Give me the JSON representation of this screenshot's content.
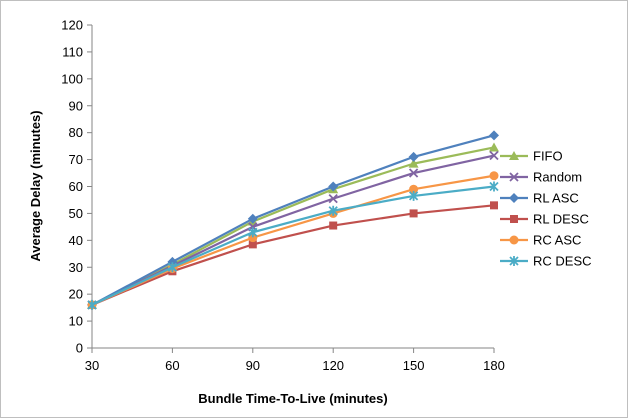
{
  "chart_data": {
    "type": "line",
    "title": "",
    "xlabel": "Bundle Time-To-Live (minutes)",
    "ylabel": "Average Delay (minutes)",
    "x": [
      30,
      60,
      90,
      120,
      150,
      180
    ],
    "xlim": [
      30,
      180
    ],
    "ylim": [
      0,
      120
    ],
    "yticks": [
      0,
      10,
      20,
      30,
      40,
      50,
      60,
      70,
      80,
      90,
      100,
      110,
      120
    ],
    "grid": false,
    "legend_position": "right",
    "series": [
      {
        "name": "FIFO",
        "color": "#9BBB59",
        "marker": "triangle",
        "values": [
          16,
          31,
          47,
          59,
          68.5,
          74.5
        ]
      },
      {
        "name": "Random",
        "color": "#8064A2",
        "marker": "x",
        "values": [
          16,
          30.5,
          45,
          55.5,
          65,
          71.5
        ]
      },
      {
        "name": "RL ASC",
        "color": "#4F81BD",
        "marker": "diamond",
        "values": [
          16,
          32,
          48,
          60,
          71,
          79
        ]
      },
      {
        "name": "RL DESC",
        "color": "#C0504D",
        "marker": "square",
        "values": [
          16,
          28.5,
          38.5,
          45.5,
          50,
          53
        ]
      },
      {
        "name": "RC ASC",
        "color": "#F79646",
        "marker": "circle",
        "values": [
          16,
          29.5,
          41,
          50,
          59,
          64
        ]
      },
      {
        "name": "RC DESC",
        "color": "#4BACC6",
        "marker": "star",
        "values": [
          16,
          30,
          43,
          51,
          56.5,
          60
        ]
      }
    ]
  }
}
